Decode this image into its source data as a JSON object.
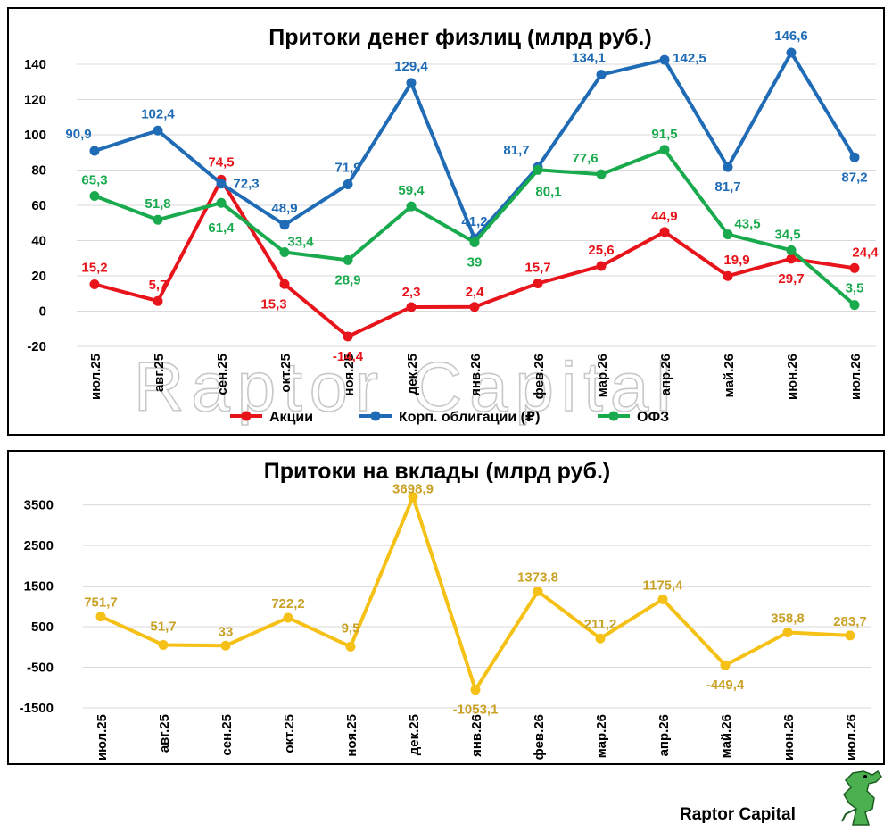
{
  "brand": {
    "name": "Raptor Capital",
    "watermark": "Raptor Capital"
  },
  "colors": {
    "stocks": "#e8141b",
    "corp_bonds": "#1f6bb5",
    "ofz": "#1aaa4e",
    "deposits": "#f5c116",
    "deposits_label": "#c9a227"
  },
  "chart_data": [
    {
      "type": "line",
      "title": "Притоки денег физлиц (млрд руб.)",
      "categories": [
        "июл.25",
        "авг.25",
        "сен.25",
        "окт.25",
        "ноя.25",
        "дек.25",
        "янв.26",
        "фев.26",
        "мар.26",
        "апр.26",
        "май.26",
        "июн.26",
        "июл.26"
      ],
      "ylim": [
        -20,
        140
      ],
      "yticks": [
        -20,
        0,
        20,
        40,
        60,
        80,
        100,
        120,
        140
      ],
      "grid": true,
      "legend": "bottom",
      "series": [
        {
          "name": "Акции",
          "color": "#e8141b",
          "values": [
            15.2,
            5.7,
            74.5,
            15.3,
            -14.4,
            2.3,
            2.4,
            15.7,
            25.6,
            44.9,
            19.9,
            29.7,
            24.4
          ],
          "labels": [
            "15,2",
            "5,7",
            "74,5",
            "15,3",
            "-14,4",
            "2,3",
            "2,4",
            "15,7",
            "25,6",
            "44,9",
            "19,9",
            "29,7",
            "24,4"
          ]
        },
        {
          "name": "Корп. облигации (₽)",
          "color": "#1f6bb5",
          "values": [
            90.9,
            102.4,
            72.3,
            48.9,
            71.9,
            129.4,
            41.2,
            81.7,
            134.1,
            142.5,
            81.7,
            146.6,
            87.2
          ],
          "labels": [
            "90,9",
            "102,4",
            "72,3",
            "48,9",
            "71,9",
            "129,4",
            "41,2",
            "81,7",
            "134,1",
            "142,5",
            "81,7",
            "146,6",
            "87,2"
          ]
        },
        {
          "name": "ОФЗ",
          "color": "#1aaa4e",
          "values": [
            65.3,
            51.8,
            61.4,
            33.4,
            28.9,
            59.4,
            39,
            80.1,
            77.6,
            91.5,
            43.5,
            34.5,
            3.5
          ],
          "labels": [
            "65,3",
            "51,8",
            "61,4",
            "33,4",
            "28,9",
            "59,4",
            "39",
            "80,1",
            "77,6",
            "91,5",
            "43,5",
            "34,5",
            "3,5"
          ]
        }
      ]
    },
    {
      "type": "line",
      "title": "Притоки на вклады (млрд руб.)",
      "categories": [
        "июл.25",
        "авг.25",
        "сен.25",
        "окт.25",
        "ноя.25",
        "дек.25",
        "янв.26",
        "фев.26",
        "мар.26",
        "апр.26",
        "май.26",
        "июн.26",
        "июл.26"
      ],
      "ylim": [
        -1500,
        3800
      ],
      "yticks": [
        -1500,
        -500,
        500,
        1500,
        2500,
        3500
      ],
      "grid": true,
      "legend": "none",
      "series": [
        {
          "color": "#f5c116",
          "values": [
            751.7,
            51.7,
            33,
            722.2,
            9.5,
            3698.9,
            -1053.1,
            1373.8,
            211.2,
            1175.4,
            -449.4,
            358.8,
            283.7
          ],
          "labels": [
            "751,7",
            "51,7",
            "33",
            "722,2",
            "9,5",
            "3698,9",
            "-1053,1",
            "1373,8",
            "211,2",
            "1175,4",
            "-449,4",
            "358,8",
            "283,7"
          ]
        }
      ]
    }
  ]
}
